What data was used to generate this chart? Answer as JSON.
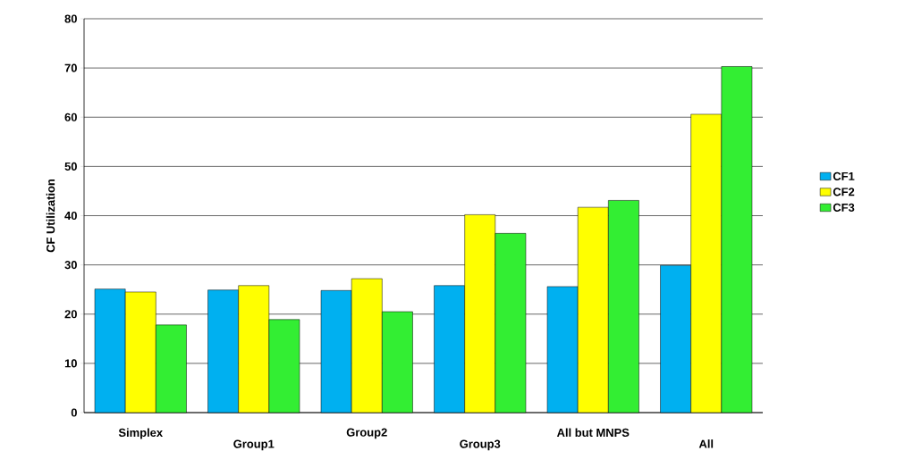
{
  "chart_data": {
    "type": "bar",
    "ylabel": "CF Utilization",
    "categories": [
      "Simplex",
      "Group1",
      "Group2",
      "Group3",
      "All but MNPS",
      "All"
    ],
    "series": [
      {
        "name": "CF1",
        "color": "#00b0f0",
        "values": [
          25.1,
          24.9,
          24.8,
          25.8,
          25.6,
          29.9
        ]
      },
      {
        "name": "CF2",
        "color": "#ffff00",
        "values": [
          24.5,
          25.8,
          27.2,
          40.2,
          41.7,
          60.6
        ]
      },
      {
        "name": "CF3",
        "color": "#33ee33",
        "values": [
          17.8,
          18.9,
          20.5,
          36.4,
          43.1,
          70.3
        ]
      }
    ],
    "ylim": [
      0,
      80
    ],
    "yticks": [
      0,
      10,
      20,
      30,
      40,
      50,
      60,
      70,
      80
    ],
    "grid": "y",
    "legend": "right"
  }
}
